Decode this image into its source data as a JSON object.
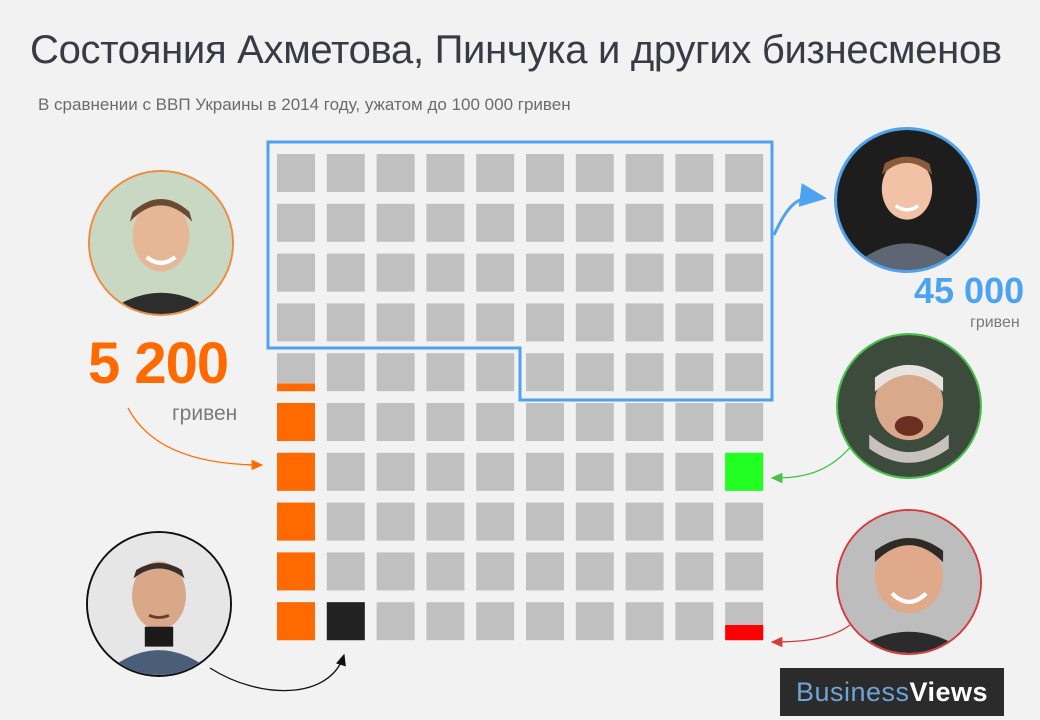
{
  "header": {
    "title": "Состояния Ахметова, Пинчука и других бизнесменов",
    "subtitle": "В сравнении  с ВВП Украины  в 2014 году, ужатом до 100 000 гривен"
  },
  "chart_data": {
    "type": "waffle",
    "total": 100000,
    "unit_per_cell": 1000,
    "grid": {
      "rows": 10,
      "cols": 10
    },
    "colors": {
      "empty": "#c0c0c0",
      "akhmetov": "#ff6a00",
      "zuckerberg_outline": "#4da3ef",
      "kolomoisky": "#22ff22",
      "poroshenko": "#ff0000",
      "pinchuk": "#222222"
    },
    "series": [
      {
        "value": 5200,
        "color": "#ff6a00"
      },
      {
        "value": 45000,
        "color": "#4da3ef"
      },
      {
        "value": 1000,
        "color": "#22ff22"
      },
      {
        "value": 1000,
        "color": "#222222"
      },
      {
        "value": 400,
        "color": "#ff0000"
      }
    ]
  },
  "labels": {
    "akhmetov_value": "5 200",
    "akhmetov_unit": "гривен",
    "zuckerberg_value": "45 000",
    "zuckerberg_unit": "гривен"
  },
  "brand": {
    "part1": "Business",
    "part2": "Views"
  }
}
